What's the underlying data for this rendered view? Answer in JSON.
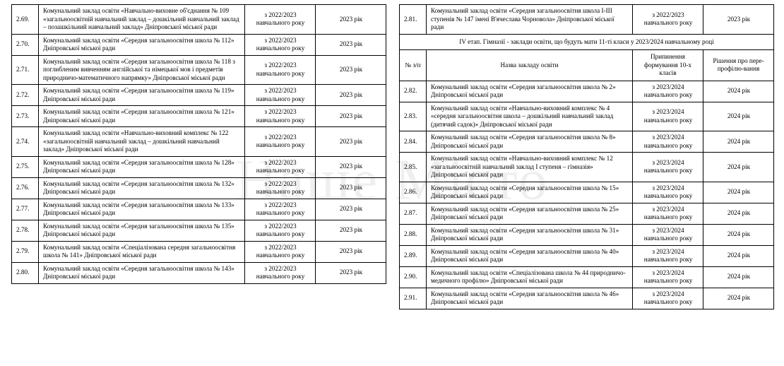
{
  "watermark": "Наше Місто",
  "leftTable": {
    "rows": [
      {
        "num": "2.69.",
        "name": "Комунальний заклад освіти «Навчально-виховне об'єднання № 109 «загальноосвітній навчальний заклад – дошкільний навчальний заклад – позашкільний навчальний заклад» Дніпровської міської ради",
        "year": "з 2022/2023 навчального року",
        "decision": "2023 рік"
      },
      {
        "num": "2.70.",
        "name": "Комунальний заклад освіти «Середня загальноосвітня школа № 112» Дніпровської міської ради",
        "year": "з 2022/2023 навчального року",
        "decision": "2023 рік"
      },
      {
        "num": "2.71.",
        "name": "Комунальний заклад освіти «Середня загальноосвітня школа № 118 з поглибленим вивченням англійської та німецької мов і предметів природничо-математичного напрямку» Дніпровської міської ради",
        "year": "з 2022/2023 навчального року",
        "decision": "2023 рік"
      },
      {
        "num": "2.72.",
        "name": "Комунальний заклад освіти «Середня загальноосвітня школа № 119» Дніпровської міської ради",
        "year": "з 2022/2023 навчального року",
        "decision": "2023 рік"
      },
      {
        "num": "2.73.",
        "name": "Комунальний заклад освіти «Середня загальноосвітня школа № 121» Дніпровської міської ради",
        "year": "з 2022/2023 навчального року",
        "decision": "2023 рік"
      },
      {
        "num": "2.74.",
        "name": "Комунальний заклад освіти «Навчально-виховний комплекс № 122 «загальноосвітній навчальний заклад – дошкільний навчальний заклад» Дніпровської міської ради",
        "year": "з 2022/2023 навчального року",
        "decision": "2023 рік"
      },
      {
        "num": "2.75.",
        "name": "Комунальний заклад освіти «Середня загальноосвітня школа № 128» Дніпровської міської ради",
        "year": "з 2022/2023 навчального року",
        "decision": "2023 рік"
      },
      {
        "num": "2.76.",
        "name": "Комунальний заклад освіти «Середня загальноосвітня школа № 132» Дніпровської міської ради",
        "year": "з 2022/2023 навчального року",
        "decision": "2023 рік"
      },
      {
        "num": "2.77.",
        "name": "Комунальний заклад освіти «Середня загальноосвітня школа № 133» Дніпровської міської ради",
        "year": "з 2022/2023 навчального року",
        "decision": "2023 рік"
      },
      {
        "num": "2.78.",
        "name": "Комунальний заклад освіти «Середня загальноосвітня школа № 135» Дніпровської міської ради",
        "year": "з 2022/2023 навчального року",
        "decision": "2023 рік"
      },
      {
        "num": "2.79.",
        "name": "Комунальний заклад освіти «Спеціалізована середня загальноосвітня школа № 141» Дніпровської міської ради",
        "year": "з 2022/2023 навчального року",
        "decision": "2023 рік"
      },
      {
        "num": "2.80.",
        "name": "Комунальний заклад освіти «Середня загальноосвітня школа № 143» Дніпровської міської ради",
        "year": "з 2022/2023 навчального року",
        "decision": "2023 рік"
      }
    ]
  },
  "rightTable": {
    "topRows": [
      {
        "num": "2.81.",
        "name": "Комунальний заклад освіти «Середня загальноосвітня школа І-ІІІ ступенів № 147 імені В'ячеслава Чорновола» Дніпровської міської ради",
        "year": "з 2022/2023 навчального року",
        "decision": "2023 рік"
      }
    ],
    "sectionTitle": "IV етап. Гімназії - заклади освіти, що будуть мати 11-ті класи у 2023/2024 навчальному році",
    "headers": {
      "num": "№ з/п",
      "name": "Назва закладу освіти",
      "year": "Припинення формування 10-х класів",
      "decision": "Рішення про пере-профілю-вання"
    },
    "rows": [
      {
        "num": "2.82.",
        "name": "Комунальний заклад освіти «Середня загальноосвітня школа № 2» Дніпровської міської ради",
        "year": "з 2023/2024 навчального року",
        "decision": "2024 рік"
      },
      {
        "num": "2.83.",
        "name": "Комунальний заклад освіти «Навчально-виховний комплекс № 4 «середня загальноосвітня школа – дошкільний навчальний заклад (дитячий садок)» Дніпровської міської ради",
        "year": "з 2023/2024 навчального року",
        "decision": "2024 рік"
      },
      {
        "num": "2.84.",
        "name": "Комунальний заклад освіти «Середня загальноосвітня школа № 8» Дніпровської міської ради",
        "year": "з 2023/2024 навчального року",
        "decision": "2024 рік"
      },
      {
        "num": "2.85.",
        "name": "Комунальний заклад освіти «Навчально-виховний комплекс № 12 «загальноосвітній навчальний заклад І ступеня – гімназія» Дніпровської міської ради",
        "year": "з 2023/2024 навчального року",
        "decision": "2024 рік"
      },
      {
        "num": "2.86.",
        "name": "Комунальний заклад освіти «Середня загальноосвітня школа № 15» Дніпровської міської ради",
        "year": "з 2023/2024 навчального року",
        "decision": "2024 рік"
      },
      {
        "num": "2.87.",
        "name": "Комунальний заклад освіти «Середня загальноосвітня школа № 25» Дніпровської міської ради",
        "year": "з 2023/2024 навчального року",
        "decision": "2024 рік"
      },
      {
        "num": "2.88.",
        "name": "Комунальний заклад освіти «Середня загальноосвітня школа № 31» Дніпровської міської ради",
        "year": "з 2023/2024 навчального року",
        "decision": "2024 рік"
      },
      {
        "num": "2.89.",
        "name": "Комунальний заклад освіти «Середня загальноосвітня школа № 40» Дніпровської міської ради",
        "year": "з 2023/2024 навчального року",
        "decision": "2024 рік"
      },
      {
        "num": "2.90.",
        "name": "Комунальний заклад освіти «Спеціалізована школа   № 44 природничо-медичного профілю» Дніпровської міської ради",
        "year": "з 2023/2024 навчального року",
        "decision": "2024 рік"
      },
      {
        "num": "2.91.",
        "name": "Комунальний заклад освіти «Середня загальноосвітня школа № 46» Дніпровської міської ради",
        "year": "з 2023/2024 навчального року",
        "decision": "2024 рік"
      }
    ]
  },
  "styling": {
    "borderColor": "#000000",
    "backgroundColor": "#ffffff",
    "textColor": "#000000",
    "fontSize": 9.2,
    "fontFamily": "Times New Roman",
    "watermarkOpacity": 0.06,
    "watermarkFontSize": 82,
    "pageWidth": 530,
    "columnWidths": {
      "num": 38,
      "name": 292,
      "year": 100,
      "decision": 100
    }
  }
}
